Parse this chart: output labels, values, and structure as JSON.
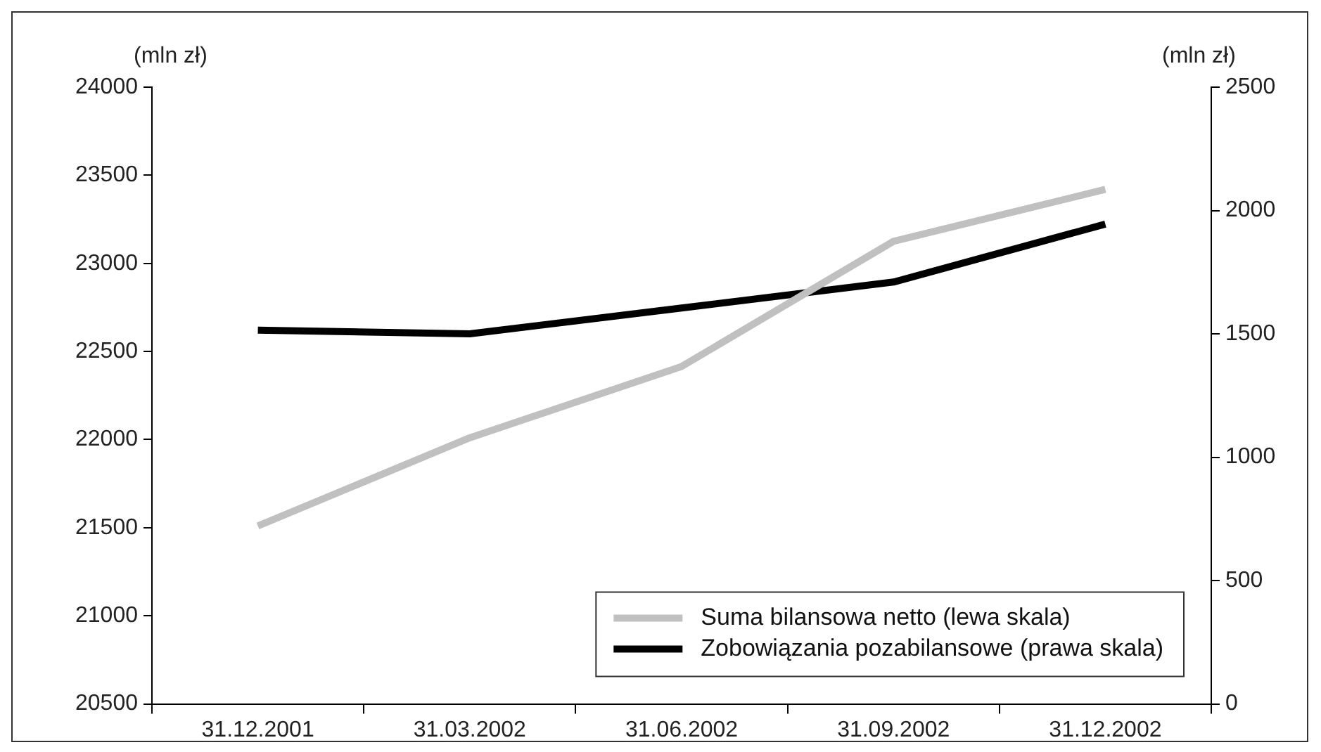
{
  "chart_data": {
    "type": "line",
    "ylabel": "(mln zł)",
    "y2label": "(mln zł)",
    "categories": [
      "31.12.2001",
      "31.03.2002",
      "31.06.2002",
      "31.09.2002",
      "31.12.2002"
    ],
    "series": [
      {
        "name": "Suma bilansowa netto (lewa skala)",
        "color": "#c0c0c0",
        "values": [
          21510,
          22010,
          22415,
          23125,
          23420
        ]
      },
      {
        "name": "Zobowiązania pozabilansowe (prawa skala)",
        "color": "#000000",
        "axis": "y2",
        "values": [
          1515,
          1500,
          1605,
          1710,
          1945
        ]
      }
    ],
    "ylim": [
      20500,
      24000
    ],
    "yticks": [
      20500,
      21000,
      21500,
      22000,
      22500,
      23000,
      23500,
      24000
    ],
    "y2lim": [
      0,
      2500
    ],
    "y2ticks": [
      0,
      500,
      1000,
      1500,
      2000,
      2500
    ],
    "grid": false,
    "legend": "bottom right",
    "marker": "none",
    "line_style": "solid"
  }
}
